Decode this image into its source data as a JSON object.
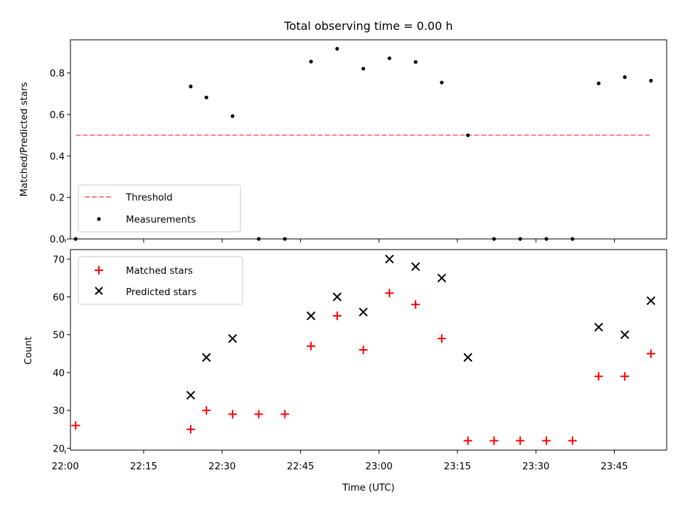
{
  "chart_data": [
    {
      "type": "scatter",
      "title": "Total observing time = 0.00 h",
      "xlabel": "",
      "ylabel": "Matched/Predicted stars",
      "ylim": [
        0,
        0.96
      ],
      "yticks": [
        "0.0",
        "0.2",
        "0.4",
        "0.6",
        "0.8"
      ],
      "x_range": [
        "22:01",
        "23:55"
      ],
      "legend": {
        "placement": "lower-left"
      },
      "series": [
        {
          "name": "Threshold",
          "style": "dashed-line",
          "color": "#ff7f7f",
          "points": [
            {
              "x": "22:02",
              "y": 0.5
            },
            {
              "x": "23:52",
              "y": 0.5
            }
          ]
        },
        {
          "name": "Measurements",
          "style": "dot",
          "color": "#000000",
          "points": [
            {
              "x": "22:02",
              "y": 0.0
            },
            {
              "x": "22:24",
              "y": 0.735
            },
            {
              "x": "22:27",
              "y": 0.682
            },
            {
              "x": "22:32",
              "y": 0.592
            },
            {
              "x": "22:37",
              "y": 0.0
            },
            {
              "x": "22:42",
              "y": 0.0
            },
            {
              "x": "22:47",
              "y": 0.855
            },
            {
              "x": "22:52",
              "y": 0.917
            },
            {
              "x": "22:57",
              "y": 0.821
            },
            {
              "x": "23:02",
              "y": 0.871
            },
            {
              "x": "23:07",
              "y": 0.853
            },
            {
              "x": "23:12",
              "y": 0.754
            },
            {
              "x": "23:17",
              "y": 0.5
            },
            {
              "x": "23:22",
              "y": 0.0
            },
            {
              "x": "23:27",
              "y": 0.0
            },
            {
              "x": "23:32",
              "y": 0.0
            },
            {
              "x": "23:37",
              "y": 0.0
            },
            {
              "x": "23:42",
              "y": 0.75
            },
            {
              "x": "23:47",
              "y": 0.78
            },
            {
              "x": "23:52",
              "y": 0.763
            }
          ]
        }
      ]
    },
    {
      "type": "scatter",
      "title": "",
      "xlabel": "Time (UTC)",
      "ylabel": "Count",
      "ylim": [
        19.5,
        72.5
      ],
      "yticks": [
        "20",
        "30",
        "40",
        "50",
        "60",
        "70"
      ],
      "x_range": [
        "22:01",
        "23:55"
      ],
      "xticks": [
        "22:00",
        "22:15",
        "22:30",
        "22:45",
        "23:00",
        "23:15",
        "23:30",
        "23:45"
      ],
      "legend": {
        "placement": "upper-left"
      },
      "series": [
        {
          "name": "Matched stars",
          "style": "plus",
          "color": "#ff0000",
          "points": [
            {
              "x": "22:02",
              "y": 26
            },
            {
              "x": "22:24",
              "y": 25
            },
            {
              "x": "22:27",
              "y": 30
            },
            {
              "x": "22:32",
              "y": 29
            },
            {
              "x": "22:37",
              "y": 29
            },
            {
              "x": "22:42",
              "y": 29
            },
            {
              "x": "22:47",
              "y": 47
            },
            {
              "x": "22:52",
              "y": 55
            },
            {
              "x": "22:57",
              "y": 46
            },
            {
              "x": "23:02",
              "y": 61
            },
            {
              "x": "23:07",
              "y": 58
            },
            {
              "x": "23:12",
              "y": 49
            },
            {
              "x": "23:17",
              "y": 22
            },
            {
              "x": "23:22",
              "y": 22
            },
            {
              "x": "23:27",
              "y": 22
            },
            {
              "x": "23:32",
              "y": 22
            },
            {
              "x": "23:37",
              "y": 22
            },
            {
              "x": "23:42",
              "y": 39
            },
            {
              "x": "23:47",
              "y": 39
            },
            {
              "x": "23:52",
              "y": 45
            }
          ]
        },
        {
          "name": "Predicted stars",
          "style": "x",
          "color": "#000000",
          "points": [
            {
              "x": "22:24",
              "y": 34
            },
            {
              "x": "22:27",
              "y": 44
            },
            {
              "x": "22:32",
              "y": 49
            },
            {
              "x": "22:47",
              "y": 55
            },
            {
              "x": "22:52",
              "y": 60
            },
            {
              "x": "22:57",
              "y": 56
            },
            {
              "x": "23:02",
              "y": 70
            },
            {
              "x": "23:07",
              "y": 68
            },
            {
              "x": "23:12",
              "y": 65
            },
            {
              "x": "23:17",
              "y": 44
            },
            {
              "x": "23:42",
              "y": 52
            },
            {
              "x": "23:47",
              "y": 50
            },
            {
              "x": "23:52",
              "y": 59
            }
          ]
        }
      ]
    }
  ]
}
